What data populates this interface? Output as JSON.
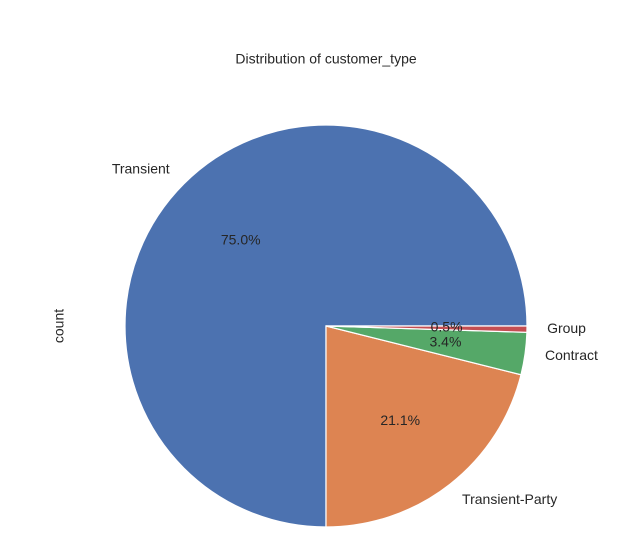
{
  "chart_data": {
    "type": "pie",
    "title": "Distribution of customer_type",
    "ylabel": "count",
    "categories": [
      "Transient",
      "Transient-Party",
      "Contract",
      "Group"
    ],
    "values": [
      75.0,
      21.1,
      3.4,
      0.5
    ],
    "value_labels": [
      "75.0%",
      "21.1%",
      "3.4%",
      "0.5%"
    ],
    "colors": [
      "#4c72b0",
      "#dd8452",
      "#55a868",
      "#c44e52"
    ]
  }
}
